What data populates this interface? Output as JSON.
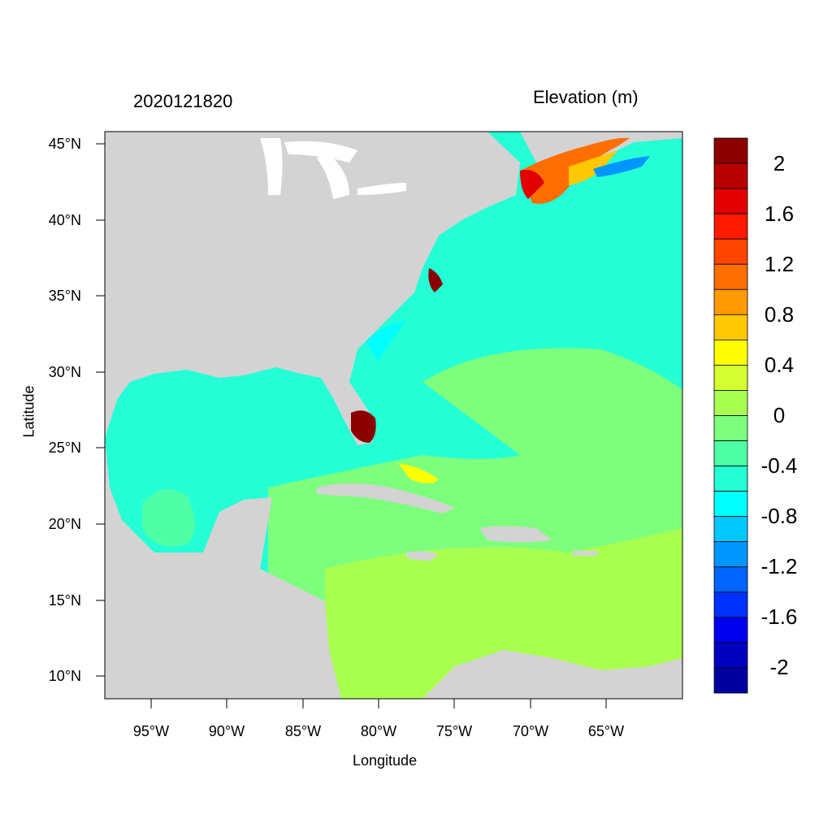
{
  "header": {
    "timestamp": "2020121820",
    "variable": "Elevation (m)"
  },
  "axes": {
    "xlabel": "Longitude",
    "ylabel": "Latitude",
    "lat_ticks": [
      "45°N",
      "40°N",
      "35°N",
      "30°N",
      "25°N",
      "20°N",
      "15°N",
      "10°N"
    ],
    "lon_ticks": [
      "95°W",
      "90°W",
      "85°W",
      "80°W",
      "75°W",
      "70°W",
      "65°W"
    ]
  },
  "colorbar": {
    "labels": [
      "2",
      "1.6",
      "1.2",
      "0.8",
      "0.4",
      "0",
      "-0.4",
      "-0.8",
      "-1.2",
      "-1.6",
      "-2"
    ],
    "colors": [
      "#8b0000",
      "#b80000",
      "#e20000",
      "#ff1a00",
      "#ff4500",
      "#ff6e00",
      "#ff9a00",
      "#ffc800",
      "#ffff00",
      "#d6ff32",
      "#a9ff4f",
      "#7dff7d",
      "#4fffa6",
      "#24ffd6",
      "#00ffff",
      "#00c8ff",
      "#0096ff",
      "#0064ff",
      "#0032ff",
      "#0000f0",
      "#0000c0",
      "#0000a0"
    ]
  },
  "colors": {
    "land": "#d3d3d3",
    "water_low": "#00ffff",
    "water_mid": "#24ffd6",
    "water_zero": "#7dff7d",
    "water_pos": "#a9ff4f",
    "surge_high": "#8b0000"
  }
}
